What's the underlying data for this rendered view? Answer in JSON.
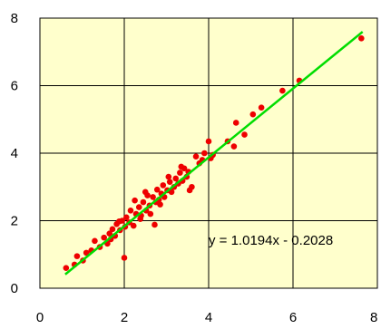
{
  "chart_data": {
    "type": "scatter",
    "title": "",
    "xlabel": "",
    "ylabel": "",
    "xlim": [
      0,
      8
    ],
    "ylim": [
      0,
      8
    ],
    "xticks": [
      "0",
      "2",
      "4",
      "6",
      "8"
    ],
    "yticks": [
      "0",
      "2",
      "4",
      "6",
      "8"
    ],
    "grid": true,
    "legend": "none",
    "colors": {
      "plot_background": "#FFFFCC",
      "points": "#EE0000",
      "trendline": "#00DD00",
      "grid": "#000000"
    },
    "series": [
      {
        "points": [
          [
            0.62,
            0.6
          ],
          [
            0.82,
            0.7
          ],
          [
            0.88,
            0.95
          ],
          [
            1.02,
            0.82
          ],
          [
            1.1,
            1.05
          ],
          [
            1.22,
            1.12
          ],
          [
            1.3,
            1.4
          ],
          [
            1.42,
            1.22
          ],
          [
            1.52,
            1.5
          ],
          [
            1.6,
            1.32
          ],
          [
            1.65,
            1.62
          ],
          [
            1.72,
            1.75
          ],
          [
            1.78,
            1.55
          ],
          [
            1.82,
            1.9
          ],
          [
            1.9,
            1.72
          ],
          [
            1.95,
            2.0
          ],
          [
            2.0,
            0.9
          ],
          [
            2.02,
            1.82
          ],
          [
            2.05,
            2.1
          ],
          [
            2.12,
            1.95
          ],
          [
            2.15,
            2.3
          ],
          [
            2.22,
            1.85
          ],
          [
            2.28,
            2.2
          ],
          [
            2.35,
            2.4
          ],
          [
            2.4,
            2.15
          ],
          [
            2.45,
            2.55
          ],
          [
            2.52,
            2.3
          ],
          [
            2.55,
            2.75
          ],
          [
            2.6,
            2.45
          ],
          [
            2.62,
            2.2
          ],
          [
            2.68,
            2.7
          ],
          [
            2.72,
            1.88
          ],
          [
            2.75,
            2.55
          ],
          [
            2.78,
            2.92
          ],
          [
            2.82,
            2.62
          ],
          [
            2.88,
            2.8
          ],
          [
            2.92,
            3.05
          ],
          [
            2.95,
            2.7
          ],
          [
            3.02,
            2.9
          ],
          [
            3.08,
            3.15
          ],
          [
            3.12,
            2.85
          ],
          [
            3.18,
            3.0
          ],
          [
            3.22,
            3.25
          ],
          [
            3.28,
            3.1
          ],
          [
            3.32,
            3.42
          ],
          [
            3.38,
            3.18
          ],
          [
            3.42,
            3.55
          ],
          [
            3.48,
            3.3
          ],
          [
            3.52,
            3.45
          ],
          [
            3.55,
            2.9
          ],
          [
            3.6,
            3.0
          ],
          [
            3.7,
            3.9
          ],
          [
            3.78,
            3.7
          ],
          [
            3.85,
            3.8
          ],
          [
            3.9,
            4.0
          ],
          [
            4.0,
            4.35
          ],
          [
            4.05,
            3.85
          ],
          [
            4.1,
            3.95
          ],
          [
            4.45,
            4.35
          ],
          [
            4.6,
            4.2
          ],
          [
            4.65,
            4.9
          ],
          [
            4.85,
            4.55
          ],
          [
            5.05,
            5.15
          ],
          [
            5.25,
            5.35
          ],
          [
            5.75,
            5.85
          ],
          [
            6.15,
            6.15
          ],
          [
            7.62,
            7.4
          ],
          [
            2.25,
            2.6
          ],
          [
            3.05,
            3.3
          ],
          [
            2.85,
            2.48
          ],
          [
            1.68,
            1.45
          ],
          [
            2.38,
            2.05
          ],
          [
            3.35,
            3.6
          ],
          [
            2.5,
            2.85
          ],
          [
            1.88,
            1.98
          ]
        ]
      }
    ],
    "trendline": {
      "slope": 1.0194,
      "intercept": -0.2028,
      "x_range": [
        0.6,
        7.65
      ],
      "label": "y = 1.0194x - 0.2028"
    }
  }
}
